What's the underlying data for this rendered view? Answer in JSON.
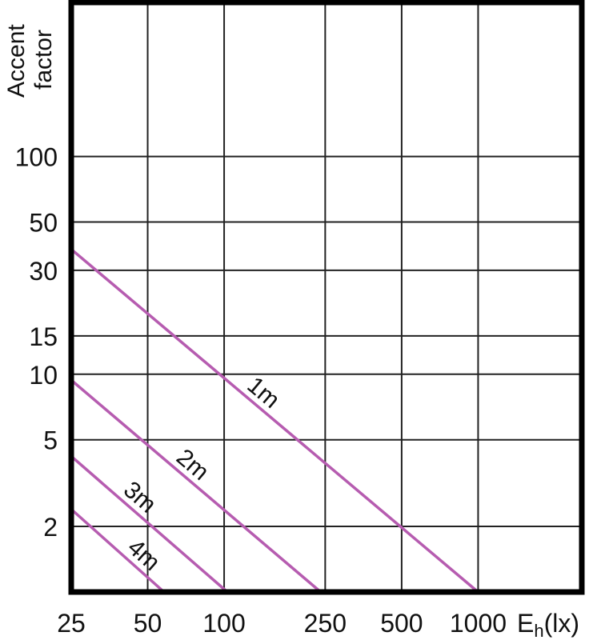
{
  "chart_data": {
    "type": "line",
    "title": "",
    "xlabel": "E",
    "xlabel_sub": "h",
    "xlabel_unit": "(lx)",
    "ylabel_line1": "Accent",
    "ylabel_line2": "factor",
    "x_scale": "log",
    "y_scale": "log",
    "xlim": [
      25,
      2560
    ],
    "ylim": [
      1,
      510
    ],
    "grid": true,
    "x_ticks": [
      25,
      50,
      100,
      250,
      500,
      1000
    ],
    "x_tick_labels": [
      "25",
      "50",
      "100",
      "250",
      "500",
      "1000"
    ],
    "y_ticks": [
      2,
      5,
      10,
      15,
      30,
      50,
      100
    ],
    "y_tick_labels": [
      "2",
      "5",
      "10",
      "15",
      "30",
      "50",
      "100"
    ],
    "line_color": "#b65cb0",
    "series": [
      {
        "name": "1m",
        "points": [
          [
            25,
            37.5
          ],
          [
            1000,
            1
          ]
        ]
      },
      {
        "name": "2m",
        "points": [
          [
            25,
            9.4
          ],
          [
            240,
            1
          ]
        ]
      },
      {
        "name": "3m",
        "points": [
          [
            25,
            4.2
          ],
          [
            103,
            1
          ]
        ]
      },
      {
        "name": "4m",
        "points": [
          [
            25,
            2.4
          ],
          [
            58,
            1
          ]
        ]
      }
    ]
  }
}
